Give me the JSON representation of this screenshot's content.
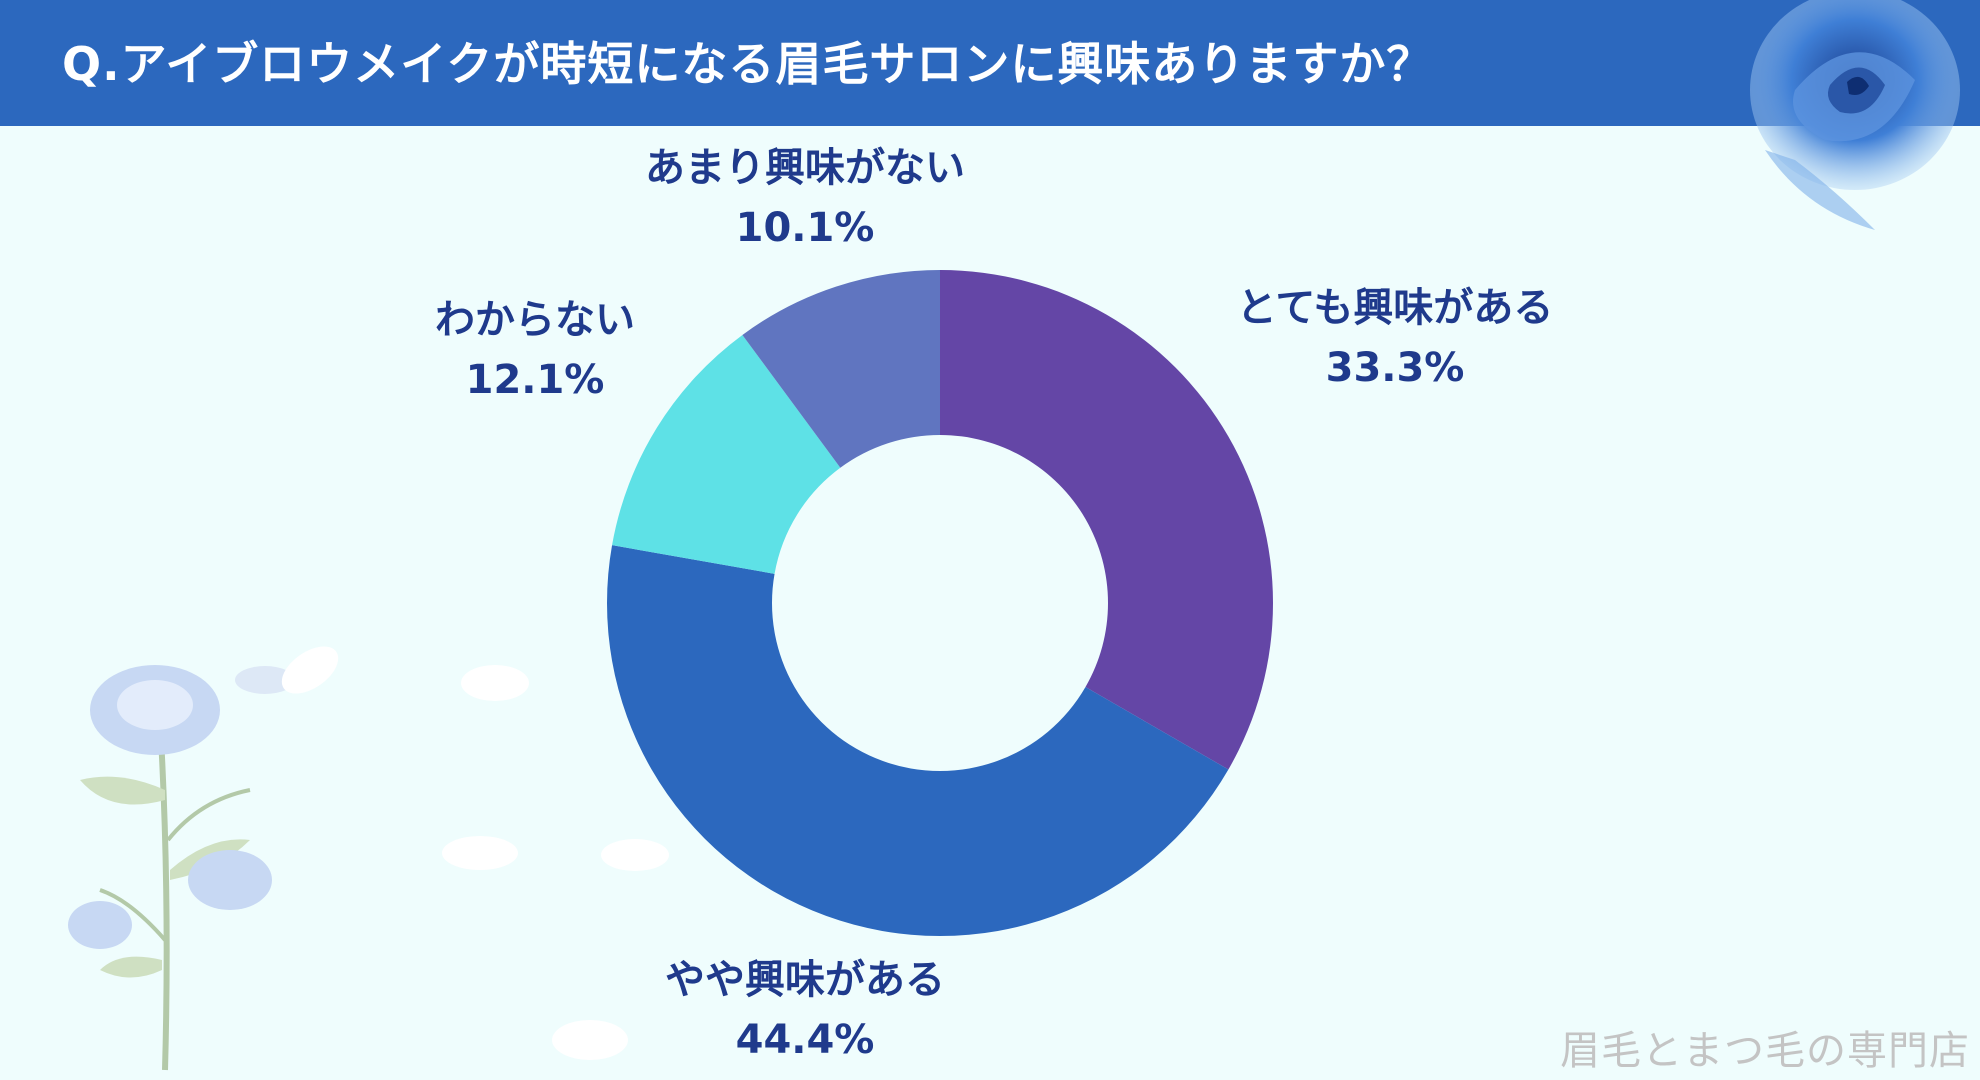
{
  "header": {
    "title": "Q.アイブロウメイクが時短になる眉毛サロンに興味ありますか？"
  },
  "chart_data": {
    "type": "pie",
    "donut": true,
    "title": "Q.アイブロウメイクが時短になる眉毛サロンに興味ありますか？",
    "slices": [
      {
        "label": "とても興味がある",
        "value": 33.3,
        "value_label": "33.3%",
        "color": "#6446a6"
      },
      {
        "label": "やや興味がある",
        "value": 44.4,
        "value_label": "44.4%",
        "color": "#2c68be"
      },
      {
        "label": "わからない",
        "value": 12.1,
        "value_label": "12.1%",
        "color": "#5ee1e6"
      },
      {
        "label": "あまり興味がない",
        "value": 10.1,
        "value_label": "10.1%",
        "color": "#6075c0"
      }
    ]
  },
  "footer": {
    "watermark": "眉毛とまつ毛の専門店"
  },
  "decorations": {
    "top_right": "blue-rose-icon",
    "bottom_left": "blue-rose-stem-icon"
  }
}
